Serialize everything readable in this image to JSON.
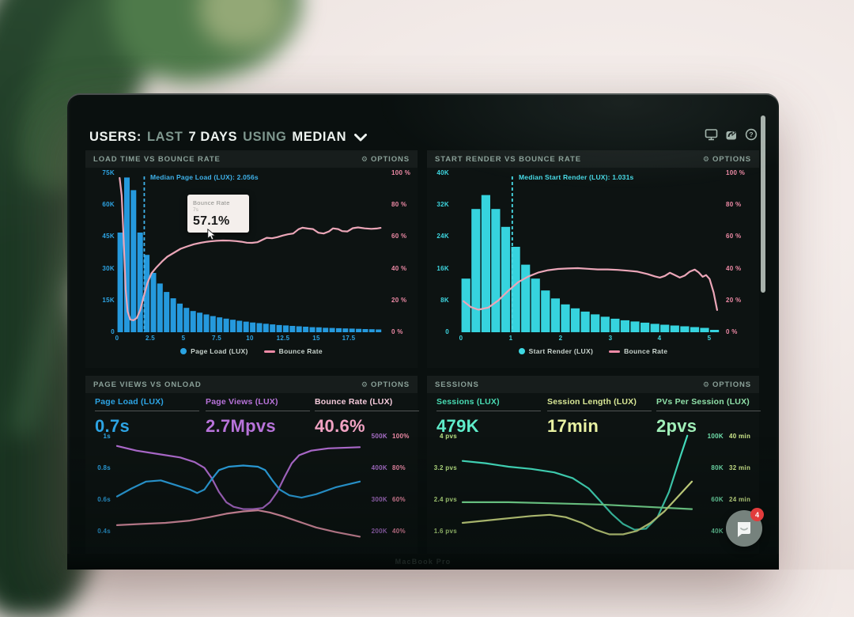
{
  "header": {
    "prefix": "USERS:",
    "range_dim": "LAST",
    "range_strong": "7 DAYS",
    "using_dim": "USING",
    "agg_strong": "MEDIAN"
  },
  "window_icons": [
    "display-icon",
    "share-icon",
    "help-icon"
  ],
  "panels": {
    "load_time": {
      "title": "LOAD TIME VS BOUNCE RATE",
      "options": "OPTIONS"
    },
    "start_render": {
      "title": "START RENDER VS BOUNCE RATE",
      "options": "OPTIONS"
    },
    "page_views": {
      "title": "PAGE VIEWS VS ONLOAD",
      "options": "OPTIONS",
      "metrics": [
        {
          "label": "Page Load (LUX)",
          "value": "0.7s",
          "color": "#2da4e4"
        },
        {
          "label": "Page Views (LUX)",
          "value": "2.7Mpvs",
          "color": "#b873da"
        },
        {
          "label": "Bounce Rate (LUX)",
          "value": "40.6%",
          "color": "#f0a2c2"
        }
      ]
    },
    "sessions": {
      "title": "SESSIONS",
      "options": "OPTIONS",
      "metrics": [
        {
          "label": "Sessions (LUX)",
          "value": "479K",
          "color": "#5fecca"
        },
        {
          "label": "Session Length (LUX)",
          "value": "17min",
          "color": "#e9f2a2"
        },
        {
          "label": "PVs Per Session (LUX)",
          "value": "2pvs",
          "color": "#a0efb8"
        }
      ]
    }
  },
  "tooltip": {
    "series": "Bounce Rate",
    "x": "7s",
    "value": "57.1%"
  },
  "chat": {
    "badge": "4"
  },
  "bezel_text": "MacBook Pro",
  "chart_data": [
    {
      "id": "load-time-vs-bounce-rate",
      "type": "histogram+line",
      "title": "LOAD TIME VS BOUNCE RATE",
      "bar_series": "Page Load (LUX)",
      "bar_color": "#2599dd",
      "bar_unit": "users (thousands)",
      "bin_width": 0.5,
      "x_span": 20.3,
      "y_left_max": 75,
      "y_left_ticks": [
        "75K",
        "60K",
        "45K",
        "30K",
        "15K",
        "0"
      ],
      "y_right_ticks": [
        "100 %",
        "80 %",
        "60 %",
        "40 %",
        "20 %",
        "0 %"
      ],
      "x_ticks": [
        "0",
        "2.5",
        "5",
        "7.5",
        "10",
        "12.5",
        "15",
        "17.5"
      ],
      "x_tick_vals": [
        0,
        2.5,
        5,
        7.5,
        10,
        12.5,
        15,
        17.5
      ],
      "bar_values": [
        47,
        73,
        67,
        47,
        36.5,
        28,
        23,
        19,
        16,
        13.5,
        11.5,
        10,
        9.2,
        8.4,
        7.6,
        7,
        6.4,
        5.9,
        5.4,
        5,
        4.6,
        4.3,
        4,
        3.7,
        3.4,
        3.2,
        3,
        2.8,
        2.6,
        2.4,
        2.3,
        2.1,
        2,
        1.9,
        1.8,
        1.7,
        1.6,
        1.5,
        1.4,
        1.3
      ],
      "line_series": "Bounce Rate",
      "line_color": "#eba6b8",
      "line_points": [
        [
          0.2,
          97
        ],
        [
          0.35,
          86
        ],
        [
          0.5,
          58
        ],
        [
          0.65,
          27
        ],
        [
          0.8,
          13
        ],
        [
          1.0,
          8
        ],
        [
          1.25,
          7.5
        ],
        [
          1.5,
          9
        ],
        [
          1.75,
          14
        ],
        [
          2.0,
          22
        ],
        [
          2.3,
          31
        ],
        [
          2.6,
          37
        ],
        [
          3.0,
          41
        ],
        [
          3.4,
          44.5
        ],
        [
          3.8,
          47.5
        ],
        [
          4.3,
          50
        ],
        [
          4.8,
          52.5
        ],
        [
          5.3,
          54
        ],
        [
          5.8,
          55.3
        ],
        [
          6.3,
          56.2
        ],
        [
          6.8,
          56.9
        ],
        [
          7.0,
          57.1
        ],
        [
          7.5,
          57.5
        ],
        [
          8.0,
          57.7
        ],
        [
          8.5,
          57.6
        ],
        [
          9.0,
          57.3
        ],
        [
          9.4,
          56.9
        ],
        [
          9.8,
          56.3
        ],
        [
          10.2,
          56.2
        ],
        [
          10.6,
          56.6
        ],
        [
          11.0,
          58.2
        ],
        [
          11.3,
          59.4
        ],
        [
          11.7,
          59.1
        ],
        [
          12.1,
          59.8
        ],
        [
          12.5,
          60.8
        ],
        [
          12.9,
          61.6
        ],
        [
          13.3,
          62.1
        ],
        [
          13.7,
          64.8
        ],
        [
          14.0,
          65.7
        ],
        [
          14.4,
          65.2
        ],
        [
          14.8,
          64.9
        ],
        [
          15.2,
          62.6
        ],
        [
          15.6,
          62.1
        ],
        [
          16.0,
          63.4
        ],
        [
          16.3,
          65.3
        ],
        [
          16.7,
          64.9
        ],
        [
          17.0,
          63.6
        ],
        [
          17.4,
          63.4
        ],
        [
          17.8,
          65.4
        ],
        [
          18.2,
          65.9
        ],
        [
          18.7,
          65.3
        ],
        [
          19.2,
          65.0
        ],
        [
          19.6,
          65.2
        ],
        [
          19.9,
          65.6
        ]
      ],
      "median": {
        "x": 2.056,
        "label": "Median Page Load (LUX): 2.056s",
        "color": "#3fb2ea"
      },
      "legend": [
        {
          "label": "Page Load (LUX)",
          "color": "#2aa3e2",
          "marker": "dot"
        },
        {
          "label": "Bounce Rate",
          "color": "#ee8aa6",
          "marker": "line"
        }
      ]
    },
    {
      "id": "start-render-vs-bounce-rate",
      "type": "histogram+line",
      "title": "START RENDER VS BOUNCE RATE",
      "bar_series": "Start Render (LUX)",
      "bar_color": "#36d3de",
      "bar_unit": "users (thousands)",
      "bin_width": 0.2,
      "x_span": 5.2,
      "y_left_max": 40,
      "y_left_ticks": [
        "40K",
        "32K",
        "24K",
        "16K",
        "8K",
        "0"
      ],
      "y_right_ticks": [
        "100 %",
        "80 %",
        "60 %",
        "40 %",
        "20 %",
        "0 %"
      ],
      "x_ticks": [
        "0",
        "1",
        "2",
        "3",
        "4",
        "5"
      ],
      "x_tick_vals": [
        0,
        1,
        2,
        3,
        4,
        5
      ],
      "bar_values": [
        13.5,
        31,
        34.5,
        31,
        26.5,
        21.5,
        17,
        13.5,
        10.5,
        8.5,
        7,
        6,
        5.2,
        4.5,
        3.9,
        3.4,
        3,
        2.7,
        2.4,
        2.1,
        1.9,
        1.7,
        1.5,
        1.3,
        1.1,
        0.6
      ],
      "line_series": "Bounce Rate",
      "line_color": "#eba6b8",
      "line_points": [
        [
          0.05,
          19.5
        ],
        [
          0.2,
          15.8
        ],
        [
          0.35,
          14.2
        ],
        [
          0.55,
          15.5
        ],
        [
          0.75,
          20
        ],
        [
          0.95,
          26
        ],
        [
          1.15,
          31.5
        ],
        [
          1.35,
          35
        ],
        [
          1.55,
          37.5
        ],
        [
          1.75,
          39
        ],
        [
          1.95,
          39.8
        ],
        [
          2.15,
          40.1
        ],
        [
          2.35,
          40.3
        ],
        [
          2.55,
          39.9
        ],
        [
          2.75,
          39.5
        ],
        [
          2.95,
          39.5
        ],
        [
          3.15,
          39.2
        ],
        [
          3.35,
          38.7
        ],
        [
          3.55,
          38.1
        ],
        [
          3.75,
          36.6
        ],
        [
          3.9,
          35.1
        ],
        [
          4.0,
          34.4
        ],
        [
          4.1,
          35.4
        ],
        [
          4.2,
          37.4
        ],
        [
          4.3,
          35.9
        ],
        [
          4.4,
          34.4
        ],
        [
          4.5,
          35.6
        ],
        [
          4.6,
          38.1
        ],
        [
          4.7,
          39.4
        ],
        [
          4.78,
          37.6
        ],
        [
          4.86,
          34.9
        ],
        [
          4.93,
          35.9
        ],
        [
          5.0,
          33.5
        ],
        [
          5.08,
          25
        ],
        [
          5.15,
          14
        ]
      ],
      "median": {
        "x": 1.031,
        "label": "Median Start Render (LUX): 1.031s",
        "color": "#48dce8"
      },
      "legend": [
        {
          "label": "Start Render (LUX)",
          "color": "#3ed8e2",
          "marker": "dot"
        },
        {
          "label": "Bounce Rate",
          "color": "#ee8aa6",
          "marker": "line"
        }
      ]
    },
    {
      "id": "page-views-vs-onload",
      "type": "multi-line",
      "title": "PAGE VIEWS VS ONLOAD",
      "y_left_ticks": [
        "1s",
        "0.8s",
        "0.6s",
        "0.4s"
      ],
      "y_right_ticks_col1": [
        "500K",
        "400K",
        "300K",
        "200K"
      ],
      "y_right_ticks_col2": [
        "100%",
        "80%",
        "60%",
        "40%"
      ],
      "series": [
        {
          "name": "Page Views (LUX)",
          "color": "#b06cd0",
          "points": [
            [
              0,
              0.13
            ],
            [
              0.08,
              0.17
            ],
            [
              0.17,
              0.2
            ],
            [
              0.26,
              0.23
            ],
            [
              0.32,
              0.27
            ],
            [
              0.36,
              0.32
            ],
            [
              0.39,
              0.41
            ],
            [
              0.42,
              0.53
            ],
            [
              0.45,
              0.62
            ],
            [
              0.48,
              0.66
            ],
            [
              0.52,
              0.68
            ],
            [
              0.56,
              0.68
            ],
            [
              0.6,
              0.67
            ],
            [
              0.63,
              0.62
            ],
            [
              0.66,
              0.53
            ],
            [
              0.69,
              0.4
            ],
            [
              0.72,
              0.28
            ],
            [
              0.75,
              0.21
            ],
            [
              0.8,
              0.17
            ],
            [
              0.87,
              0.15
            ],
            [
              1,
              0.14
            ]
          ]
        },
        {
          "name": "Page Load (LUX)",
          "color": "#2da4e4",
          "points": [
            [
              0,
              0.57
            ],
            [
              0.06,
              0.5
            ],
            [
              0.12,
              0.44
            ],
            [
              0.18,
              0.43
            ],
            [
              0.24,
              0.47
            ],
            [
              0.3,
              0.51
            ],
            [
              0.33,
              0.54
            ],
            [
              0.36,
              0.51
            ],
            [
              0.39,
              0.42
            ],
            [
              0.42,
              0.34
            ],
            [
              0.46,
              0.31
            ],
            [
              0.52,
              0.3
            ],
            [
              0.58,
              0.31
            ],
            [
              0.61,
              0.34
            ],
            [
              0.64,
              0.43
            ],
            [
              0.67,
              0.51
            ],
            [
              0.71,
              0.56
            ],
            [
              0.76,
              0.58
            ],
            [
              0.82,
              0.55
            ],
            [
              0.9,
              0.49
            ],
            [
              1,
              0.44
            ]
          ]
        },
        {
          "name": "Bounce Rate (LUX)",
          "color": "#ee9ab0",
          "points": [
            [
              0,
              0.82
            ],
            [
              0.1,
              0.81
            ],
            [
              0.2,
              0.8
            ],
            [
              0.3,
              0.78
            ],
            [
              0.38,
              0.75
            ],
            [
              0.45,
              0.72
            ],
            [
              0.52,
              0.7
            ],
            [
              0.58,
              0.69
            ],
            [
              0.63,
              0.71
            ],
            [
              0.68,
              0.74
            ],
            [
              0.75,
              0.79
            ],
            [
              0.82,
              0.84
            ],
            [
              0.9,
              0.88
            ],
            [
              1,
              0.92
            ]
          ]
        }
      ]
    },
    {
      "id": "sessions",
      "type": "multi-line",
      "title": "SESSIONS",
      "y_left_ticks": [
        "4 pvs",
        "3.2 pvs",
        "2.4 pvs",
        "1.6 pvs"
      ],
      "y_right_ticks_col1": [
        "100K",
        "80K",
        "60K",
        "40K"
      ],
      "y_right_ticks_col2": [
        "40 min",
        "32 min",
        "24 min",
        ""
      ],
      "series": [
        {
          "name": "Sessions (LUX)",
          "color": "#45e0c0",
          "points": [
            [
              0,
              0.26
            ],
            [
              0.1,
              0.28
            ],
            [
              0.2,
              0.31
            ],
            [
              0.3,
              0.33
            ],
            [
              0.4,
              0.36
            ],
            [
              0.48,
              0.41
            ],
            [
              0.55,
              0.5
            ],
            [
              0.6,
              0.61
            ],
            [
              0.65,
              0.72
            ],
            [
              0.7,
              0.81
            ],
            [
              0.75,
              0.86
            ],
            [
              0.8,
              0.85
            ],
            [
              0.85,
              0.75
            ],
            [
              0.9,
              0.53
            ],
            [
              0.95,
              0.22
            ],
            [
              0.98,
              0.04
            ]
          ]
        },
        {
          "name": "PVs Per Session (LUX)",
          "color": "#7fe89a",
          "points": [
            [
              0,
              0.62
            ],
            [
              0.2,
              0.62
            ],
            [
              0.4,
              0.63
            ],
            [
              0.6,
              0.64
            ],
            [
              0.8,
              0.66
            ],
            [
              1,
              0.68
            ]
          ]
        },
        {
          "name": "Session Length (LUX)",
          "color": "#dcea8c",
          "points": [
            [
              0,
              0.8
            ],
            [
              0.1,
              0.78
            ],
            [
              0.2,
              0.76
            ],
            [
              0.3,
              0.74
            ],
            [
              0.38,
              0.73
            ],
            [
              0.45,
              0.75
            ],
            [
              0.52,
              0.8
            ],
            [
              0.58,
              0.86
            ],
            [
              0.64,
              0.9
            ],
            [
              0.7,
              0.9
            ],
            [
              0.76,
              0.87
            ],
            [
              0.82,
              0.8
            ],
            [
              0.88,
              0.7
            ],
            [
              0.94,
              0.57
            ],
            [
              1,
              0.44
            ]
          ]
        }
      ]
    }
  ]
}
